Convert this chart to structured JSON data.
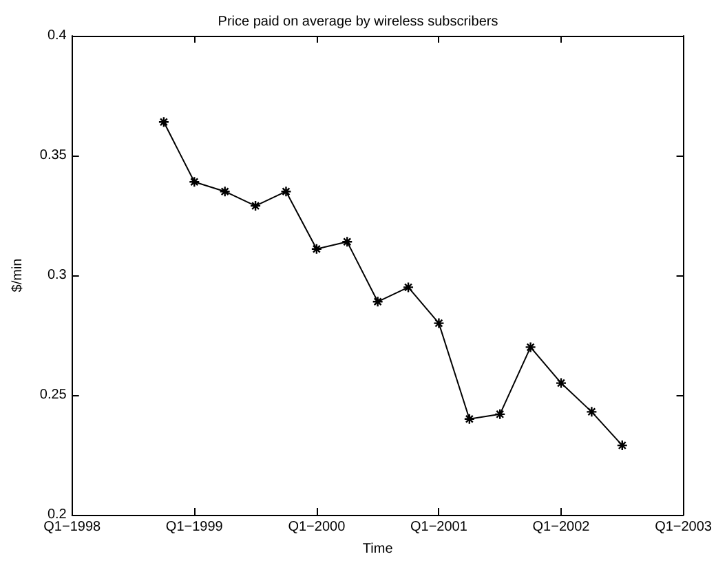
{
  "chart_data": {
    "type": "line",
    "title": "Price paid on average by wireless subscribers",
    "xlabel": "Time",
    "ylabel": "$/min",
    "categories": [
      "Q1−1998",
      null,
      null,
      null,
      "Q1−1999",
      null,
      null,
      null,
      "Q1−2000",
      null,
      null,
      null,
      "Q1−2001",
      null,
      null,
      null,
      "Q1−2002",
      null,
      null,
      null,
      "Q1−2003"
    ],
    "series": [
      {
        "color": "#000000",
        "values": [
          null,
          null,
          null,
          0.364,
          0.339,
          0.335,
          0.329,
          0.335,
          0.311,
          0.314,
          0.289,
          0.295,
          0.28,
          0.24,
          0.242,
          0.27,
          0.255,
          0.243,
          0.229,
          null,
          null
        ]
      }
    ],
    "ylim": [
      0.2,
      0.4
    ],
    "yticks": [
      0.2,
      0.25,
      0.3,
      0.35,
      0.4
    ],
    "grid": false,
    "marker": "cross",
    "line_style": "solid"
  }
}
